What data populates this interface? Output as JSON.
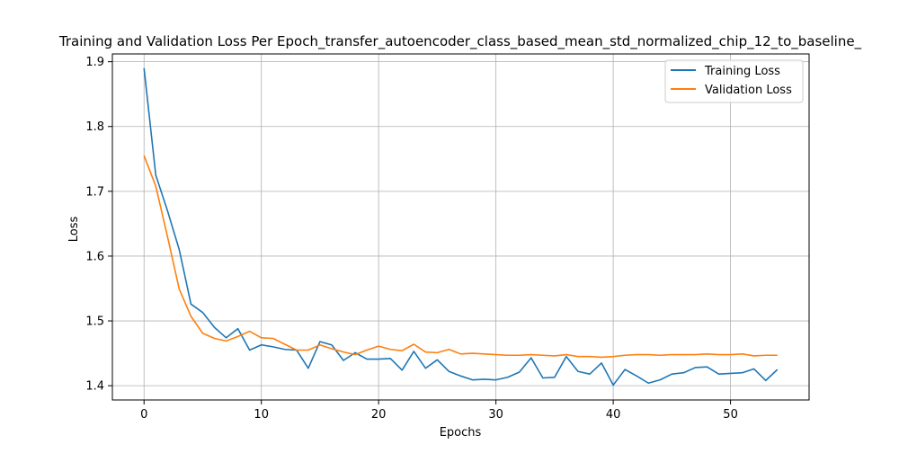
{
  "chart_data": {
    "type": "line",
    "title": "Training and Validation Loss Per Epoch_transfer_autoencoder_class_based_mean_std_normalized_chip_12_to_baseline_",
    "xlabel": "Epochs",
    "ylabel": "Loss",
    "xlim": [
      -2.7,
      56.7
    ],
    "ylim": [
      1.378,
      1.912
    ],
    "xticks": [
      0,
      10,
      20,
      30,
      40,
      50
    ],
    "yticks": [
      1.4,
      1.5,
      1.6,
      1.7,
      1.8,
      1.9
    ],
    "grid": true,
    "legend_position": "top-right",
    "x": [
      0,
      1,
      2,
      3,
      4,
      5,
      6,
      7,
      8,
      9,
      10,
      11,
      12,
      13,
      14,
      15,
      16,
      17,
      18,
      19,
      20,
      21,
      22,
      23,
      24,
      25,
      26,
      27,
      28,
      29,
      30,
      31,
      32,
      33,
      34,
      35,
      36,
      37,
      38,
      39,
      40,
      41,
      42,
      43,
      44,
      45,
      46,
      47,
      48,
      49,
      50,
      51,
      52,
      53,
      54
    ],
    "series": [
      {
        "name": "Training Loss",
        "color": "#1f77b4",
        "values": [
          1.89,
          1.725,
          1.67,
          1.61,
          1.526,
          1.513,
          1.49,
          1.474,
          1.488,
          1.455,
          1.463,
          1.46,
          1.456,
          1.455,
          1.427,
          1.468,
          1.463,
          1.439,
          1.451,
          1.441,
          1.441,
          1.442,
          1.424,
          1.453,
          1.427,
          1.44,
          1.422,
          1.415,
          1.409,
          1.41,
          1.409,
          1.413,
          1.421,
          1.443,
          1.412,
          1.413,
          1.445,
          1.422,
          1.418,
          1.435,
          1.401,
          1.425,
          1.415,
          1.404,
          1.409,
          1.418,
          1.42,
          1.428,
          1.429,
          1.418,
          1.419,
          1.42,
          1.426,
          1.408,
          1.425
        ]
      },
      {
        "name": "Validation Loss",
        "color": "#ff7f0e",
        "values": [
          1.755,
          1.708,
          1.63,
          1.549,
          1.507,
          1.481,
          1.473,
          1.469,
          1.476,
          1.484,
          1.474,
          1.473,
          1.464,
          1.455,
          1.455,
          1.463,
          1.457,
          1.452,
          1.448,
          1.455,
          1.461,
          1.456,
          1.454,
          1.464,
          1.452,
          1.451,
          1.456,
          1.449,
          1.45,
          1.449,
          1.448,
          1.447,
          1.447,
          1.448,
          1.447,
          1.446,
          1.448,
          1.445,
          1.445,
          1.444,
          1.445,
          1.447,
          1.448,
          1.448,
          1.447,
          1.448,
          1.448,
          1.448,
          1.449,
          1.448,
          1.448,
          1.449,
          1.446,
          1.447,
          1.447
        ]
      }
    ]
  }
}
